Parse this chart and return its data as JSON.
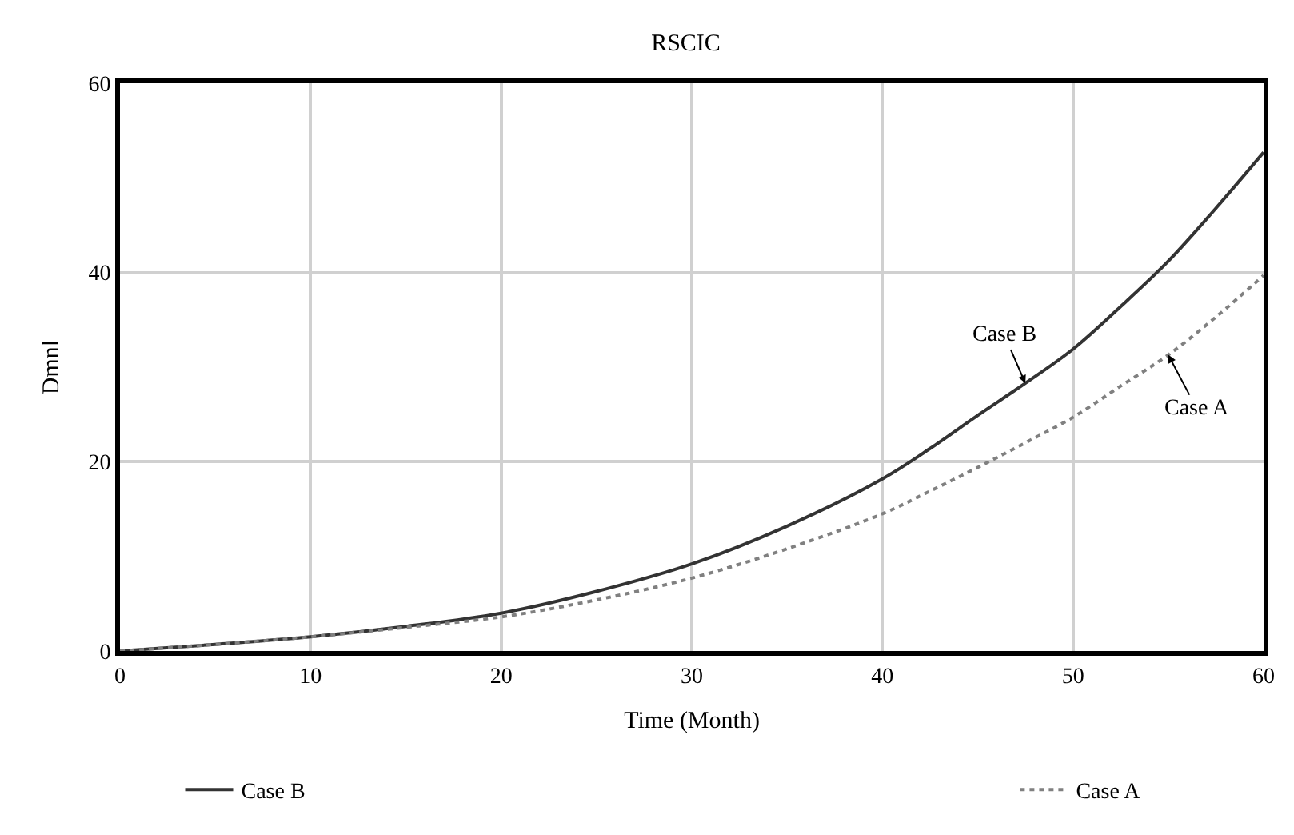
{
  "chart_data": {
    "type": "line",
    "title": "RSCIC",
    "xlabel": "Time (Month)",
    "ylabel": "Dmnl",
    "x": [
      0,
      5,
      10,
      15,
      20,
      25,
      30,
      35,
      40,
      42.5,
      45,
      47.5,
      50,
      52.5,
      55,
      57.5,
      60
    ],
    "series": [
      {
        "name": "Case B",
        "color": "#333333",
        "line_style": "solid",
        "values": [
          0,
          0.7,
          1.5,
          2.6,
          4.0,
          6.3,
          9.2,
          13.2,
          18.2,
          21.4,
          24.9,
          28.3,
          31.9,
          36.4,
          41.2,
          46.8,
          52.7
        ]
      },
      {
        "name": "Case A",
        "color": "#808080",
        "line_style": "dotted",
        "values": [
          0,
          0.7,
          1.5,
          2.5,
          3.6,
          5.4,
          7.7,
          10.8,
          14.5,
          16.9,
          19.4,
          22.0,
          24.7,
          28.0,
          31.3,
          35.3,
          39.7
        ]
      }
    ],
    "annotations": [
      {
        "text": "Case B",
        "x": 47.5,
        "y": 28.3
      },
      {
        "text": "Case A",
        "x": 55,
        "y": 31.3
      }
    ],
    "xlim": [
      0,
      60
    ],
    "xticks": [
      0,
      10,
      20,
      30,
      40,
      50,
      60
    ],
    "ylim": [
      0,
      60
    ],
    "yticks": [
      0,
      20,
      40,
      60
    ],
    "grid": true,
    "legend": "bottom",
    "marker": "none"
  }
}
